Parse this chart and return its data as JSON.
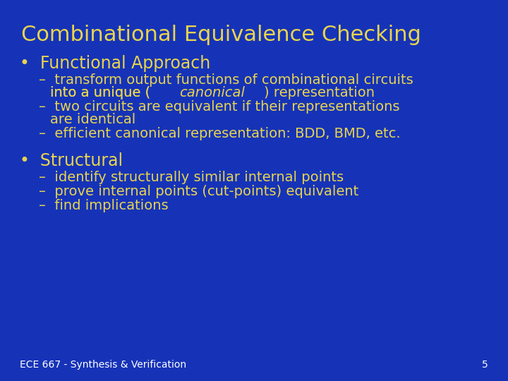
{
  "title": "Combinational Equivalence Checking",
  "background_color": "#1633b8",
  "title_color": "#e8d44d",
  "text_color": "#e8d44d",
  "footer_text": "ECE 667 - Synthesis & Verification",
  "footer_page": "5",
  "footer_color": "#ffffff",
  "title_fontsize": 22,
  "bullet_fontsize": 17,
  "sub_fontsize": 14,
  "footer_fontsize": 10
}
